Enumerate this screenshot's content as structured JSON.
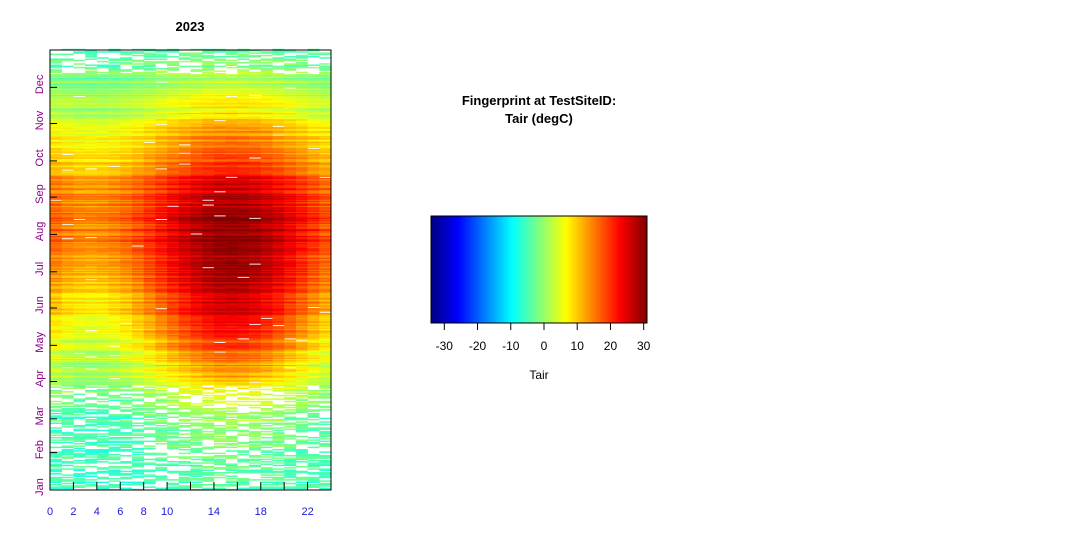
{
  "chart_data": [
    {
      "type": "heatmap",
      "title": "2023",
      "x": {
        "label": "",
        "range": [
          0,
          24
        ],
        "ticks": [
          0,
          2,
          4,
          6,
          8,
          10,
          12,
          14,
          16,
          18,
          20,
          22
        ],
        "tick_labels": [
          "0",
          "2",
          "4",
          "6",
          "8",
          "10",
          "14",
          "18",
          "22"
        ],
        "tick_label_values": [
          0,
          2,
          4,
          6,
          8,
          10,
          14,
          18,
          22
        ],
        "label_color": "#1a1adb"
      },
      "y": {
        "label": "",
        "range": [
          1,
          366
        ],
        "tick_labels": [
          "Jan",
          "Feb",
          "Mar",
          "Apr",
          "May",
          "Jun",
          "Jul",
          "Aug",
          "Sep",
          "Oct",
          "Nov",
          "Dec"
        ],
        "tick_values": [
          1,
          32,
          60,
          91,
          121,
          152,
          182,
          213,
          244,
          274,
          305,
          335
        ],
        "label_color": "#8b008b"
      },
      "value_name": "Tair",
      "value_unit": "degC",
      "value_range": [
        -33,
        31
      ],
      "description_of_pattern": {
        "seasonal_profile_doy_meanC_and_amplitudeC": [
          [
            1,
            -5,
            1
          ],
          [
            20,
            -4,
            1
          ],
          [
            40,
            -3,
            2
          ],
          [
            60,
            -1,
            3
          ],
          [
            80,
            2,
            4
          ],
          [
            100,
            7,
            6
          ],
          [
            120,
            11,
            8
          ],
          [
            140,
            15,
            9
          ],
          [
            160,
            18,
            9
          ],
          [
            180,
            20,
            9
          ],
          [
            200,
            22,
            8
          ],
          [
            220,
            22,
            8
          ],
          [
            240,
            21,
            7
          ],
          [
            260,
            18,
            6
          ],
          [
            280,
            13,
            5
          ],
          [
            300,
            9,
            4
          ],
          [
            320,
            4,
            3
          ],
          [
            340,
            1,
            2
          ],
          [
            366,
            -3,
            1
          ]
        ],
        "peak_hour": 15,
        "missing_data_fraction_winter": 0.45,
        "missing_data_fraction_other": 0.01
      }
    },
    {
      "type": "colorbar",
      "title_line1": "Fingerprint at TestSiteID:",
      "title_line2": "Tair (degC)",
      "xlabel": "Tair",
      "range": [
        -34,
        31
      ],
      "ticks": [
        -30,
        -20,
        -10,
        0,
        10,
        20,
        30
      ],
      "tick_labels": [
        "-30",
        "-20",
        "-10",
        "0",
        "10",
        "20",
        "30"
      ],
      "colormap": [
        "#00007f",
        "#0000ff",
        "#007fff",
        "#00ffff",
        "#7fff7f",
        "#ffff00",
        "#ff7f00",
        "#ff0000",
        "#7f0000"
      ]
    }
  ]
}
